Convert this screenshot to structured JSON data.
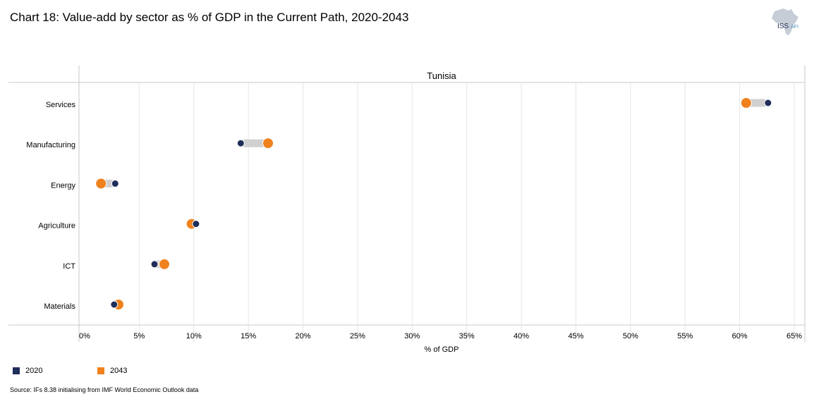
{
  "title": "Chart 18: Value-add by sector as % of GDP in the Current Path, 2020-2043",
  "logo": {
    "text_main": "ISS",
    "text_sub": "AFI",
    "icon": "africa-map-icon"
  },
  "source": "Source: IFs 8.38 initialising from IMF World Economic Outlook data",
  "colors": {
    "y2020": "#1f2d5a",
    "y2043": "#f0821e",
    "connector": "#d0d0d0",
    "grid": "#e6e6e6"
  },
  "chart_data": {
    "type": "dumbbell",
    "panel_title": "Tunisia",
    "xlabel": "% of GDP",
    "xlim": [
      0,
      65
    ],
    "x_ticks": [
      "0%",
      "5%",
      "10%",
      "15%",
      "20%",
      "25%",
      "30%",
      "35%",
      "40%",
      "45%",
      "50%",
      "55%",
      "60%",
      "65%"
    ],
    "categories": [
      "Services",
      "Manufacturing",
      "Energy",
      "Agriculture",
      "ICT",
      "Materials"
    ],
    "series": [
      {
        "name": "2020",
        "values": [
          62.6,
          14.3,
          2.8,
          10.2,
          6.4,
          2.7
        ]
      },
      {
        "name": "2043",
        "values": [
          60.6,
          16.8,
          1.5,
          9.8,
          7.3,
          3.1
        ]
      }
    ],
    "legend": [
      "2020",
      "2043"
    ]
  }
}
